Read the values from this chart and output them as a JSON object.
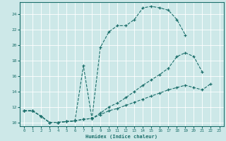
{
  "xlabel": "Humidex (Indice chaleur)",
  "bg_color": "#cde8e8",
  "grid_color": "#ffffff",
  "line_color": "#1a6e6a",
  "xlim": [
    -0.5,
    23.5
  ],
  "ylim": [
    9.5,
    25.5
  ],
  "xticks": [
    0,
    1,
    2,
    3,
    4,
    5,
    6,
    7,
    8,
    9,
    10,
    11,
    12,
    13,
    14,
    15,
    16,
    17,
    18,
    19,
    20,
    21,
    22,
    23
  ],
  "yticks": [
    10,
    12,
    14,
    16,
    18,
    20,
    22,
    24
  ],
  "curve1_x": [
    0,
    1,
    2,
    3,
    4,
    5,
    6,
    7,
    8,
    9,
    10,
    11,
    12,
    13,
    14,
    15,
    16,
    17,
    18,
    19
  ],
  "curve1_y": [
    11.5,
    11.5,
    10.8,
    10.0,
    10.0,
    10.1,
    10.2,
    17.3,
    10.5,
    19.7,
    21.7,
    22.5,
    22.5,
    23.3,
    24.8,
    25.0,
    24.8,
    24.5,
    23.3,
    21.3
  ],
  "curve2_x": [
    0,
    1,
    2,
    3,
    4,
    5,
    6,
    7,
    8,
    9,
    10,
    11,
    12,
    13,
    14,
    15,
    16,
    17,
    18,
    19,
    20,
    21
  ],
  "curve2_y": [
    11.5,
    11.5,
    10.8,
    10.0,
    10.0,
    10.1,
    10.2,
    10.4,
    10.5,
    11.2,
    12.0,
    12.5,
    13.2,
    14.0,
    14.8,
    15.5,
    16.2,
    17.0,
    18.5,
    19.0,
    18.5,
    16.5
  ],
  "curve3_x": [
    0,
    1,
    2,
    3,
    4,
    5,
    6,
    7,
    8,
    9,
    10,
    11,
    12,
    13,
    14,
    15,
    16,
    17,
    18,
    19,
    20,
    21,
    22
  ],
  "curve3_y": [
    11.5,
    11.5,
    10.8,
    10.0,
    10.0,
    10.1,
    10.2,
    10.4,
    10.5,
    11.0,
    11.5,
    11.8,
    12.2,
    12.6,
    13.0,
    13.4,
    13.8,
    14.2,
    14.5,
    14.8,
    14.5,
    14.2,
    15.0
  ]
}
